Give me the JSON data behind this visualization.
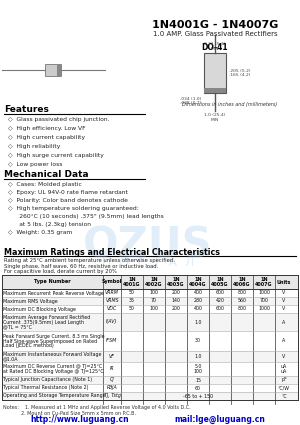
{
  "title": "1N4001G - 1N4007G",
  "subtitle": "1.0 AMP. Glass Passivated Rectifiers",
  "package": "DO-41",
  "bg_color": "#ffffff",
  "features_title": "Features",
  "features": [
    "Glass passivated chip junction.",
    "High efficiency. Low VF",
    "High current capability",
    "High reliability",
    "High surge current capability",
    "Low power loss"
  ],
  "mech_title": "Mechanical Data",
  "mech": [
    "Cases: Molded plastic",
    "Epoxy: UL 94V-0 rate flame retardant",
    "Polarity: Color band denotes cathode",
    "High temperature soldering guaranteed:",
    "  260°C (10 seconds) .375\" (9.5mm) lead lengths",
    "  at 5 lbs. (2.3kg) tension",
    "Weight: 0.35 gram"
  ],
  "mech_bullets": [
    true,
    true,
    true,
    true,
    false,
    false,
    true
  ],
  "ratings_title": "Maximum Ratings and Electrical Characteristics",
  "ratings_sub1": "Rating at 25°C ambient temperature unless otherwise specified.",
  "ratings_sub2": "Single phase, half wave, 60 Hz, resistive or inductive load.",
  "ratings_sub3": "For capacitive load, derate current by 20%",
  "col_headers": [
    "Type Number",
    "Symbol",
    "1N\n4001G",
    "1N\n4002G",
    "1N\n4003G",
    "1N\n4004G",
    "1N\n4005G",
    "1N\n4006G",
    "1N\n4007G",
    "Units"
  ],
  "rows": [
    [
      "Maximum Recurrent Peak Reverse Voltage",
      "VRRM",
      "50",
      "100",
      "200",
      "400",
      "600",
      "800",
      "1000",
      "V"
    ],
    [
      "Maximum RMS Voltage",
      "VRMS",
      "35",
      "70",
      "140",
      "280",
      "420",
      "560",
      "700",
      "V"
    ],
    [
      "Maximum DC Blocking Voltage",
      "VDC",
      "50",
      "100",
      "200",
      "400",
      "600",
      "800",
      "1000",
      "V"
    ],
    [
      "Maximum Average Forward Rectified\nCurrent .375(9.5mm) Lead Length\n@TL = 75°C",
      "I(AV)",
      "",
      "",
      "",
      "1.0",
      "",
      "",
      "",
      "A"
    ],
    [
      "Peak Forward Surge Current, 8.3 ms Single\nHalf Sine-wave Superimposed on Rated\nLoad (JEDEC method)",
      "IFSM",
      "",
      "",
      "",
      "30",
      "",
      "",
      "",
      "A"
    ],
    [
      "Maximum Instantaneous Forward Voltage\n@1.0A",
      "VF",
      "",
      "",
      "",
      "1.0",
      "",
      "",
      "",
      "V"
    ],
    [
      "Maximum DC Reverse Current @ TJ=25°C\nat Rated DC Blocking Voltage @ TJ=125°C",
      "IR",
      "",
      "",
      "",
      "5.0\n100",
      "",
      "",
      "",
      "uA\nuA"
    ],
    [
      "Typical Junction Capacitance (Note 1)",
      "CJ",
      "",
      "",
      "",
      "15",
      "",
      "",
      "",
      "pF"
    ],
    [
      "Typical Thermal Resistance (Note 2)",
      "RθJA",
      "",
      "",
      "",
      "60",
      "",
      "",
      "",
      "°C/W"
    ],
    [
      "Operating and Storage Temperature Range",
      "TJ, Tstg",
      "",
      "",
      "",
      "-65 to + 150",
      "",
      "",
      "",
      "°C"
    ]
  ],
  "notes": [
    "Notes:    1. Measured at 1 MHz and Applied Reverse Voltage of 4.0 Volts D.C.",
    "            2. Mount on Cu-Pad Size 5mm x 5mm on P.C.B."
  ],
  "footer_url": "http://www.luguang.cn",
  "footer_email": "mail:lge@luguang.cn",
  "dim_note": "Dimensions in inches and (millimeters)",
  "watermark1": "OZUS",
  "watermark2": "П  О  Р  Т  А  Л"
}
